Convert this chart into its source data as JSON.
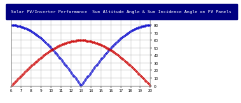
{
  "title": "Solar PV/Inverter Performance  Sun Altitude Angle & Sun Incidence Angle on PV Panels",
  "blue_label": "Sun Altitude Angle",
  "red_label": "Sun Incidence Angle on PV Panels",
  "x_start": 6,
  "x_end": 20,
  "x_ticks": [
    6,
    7,
    8,
    9,
    10,
    11,
    12,
    13,
    14,
    15,
    16,
    17,
    18,
    19,
    20
  ],
  "y_ticks": [
    0,
    10,
    20,
    30,
    40,
    50,
    60,
    70,
    80,
    90
  ],
  "ylim": [
    0,
    90
  ],
  "blue_peak": 80,
  "red_peak": 60,
  "blue_color": "#0000cc",
  "red_color": "#cc0000",
  "bg_color": "#ffffff",
  "title_bg": "#000080",
  "title_color": "#ffffff",
  "grid_color": "#aaaaaa",
  "title_fontsize": 3.2,
  "tick_fontsize": 2.8,
  "noon": 13.0,
  "n_points": 200
}
